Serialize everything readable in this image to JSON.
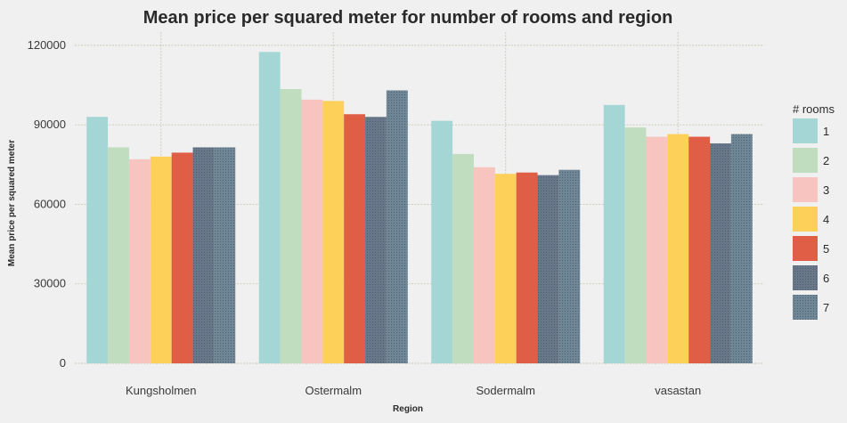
{
  "chart_data": {
    "type": "bar",
    "title": "Mean price per squared meter for number of rooms and region",
    "xlabel": "Region",
    "ylabel": "Mean price per squared meter",
    "ylim": [
      0,
      125000
    ],
    "yticks": [
      0,
      30000,
      60000,
      90000,
      120000
    ],
    "grid": true,
    "legend_placement": "right",
    "legend_title": "# rooms",
    "categories": [
      "Kungsholmen",
      "Ostermalm",
      "Sodermalm",
      "vasastan"
    ],
    "series": [
      {
        "name": "1",
        "color": "#a3d6d4",
        "textured": false,
        "values": [
          93000,
          117500,
          91500,
          97500
        ]
      },
      {
        "name": "2",
        "color": "#c1ddc0",
        "textured": false,
        "values": [
          81500,
          103500,
          79000,
          89000
        ]
      },
      {
        "name": "3",
        "color": "#f8c4c0",
        "textured": false,
        "values": [
          77000,
          99500,
          74000,
          85500
        ]
      },
      {
        "name": "4",
        "color": "#fdd05a",
        "textured": false,
        "values": [
          78000,
          99000,
          71500,
          86500
        ]
      },
      {
        "name": "5",
        "color": "#e05e45",
        "textured": false,
        "values": [
          79500,
          94000,
          72000,
          85500
        ]
      },
      {
        "name": "6",
        "color": "#68788a",
        "textured": true,
        "values": [
          81500,
          93000,
          71000,
          83000
        ]
      },
      {
        "name": "7",
        "color": "#6e8696",
        "textured": true,
        "values": [
          81500,
          103000,
          73000,
          86500
        ]
      }
    ]
  }
}
